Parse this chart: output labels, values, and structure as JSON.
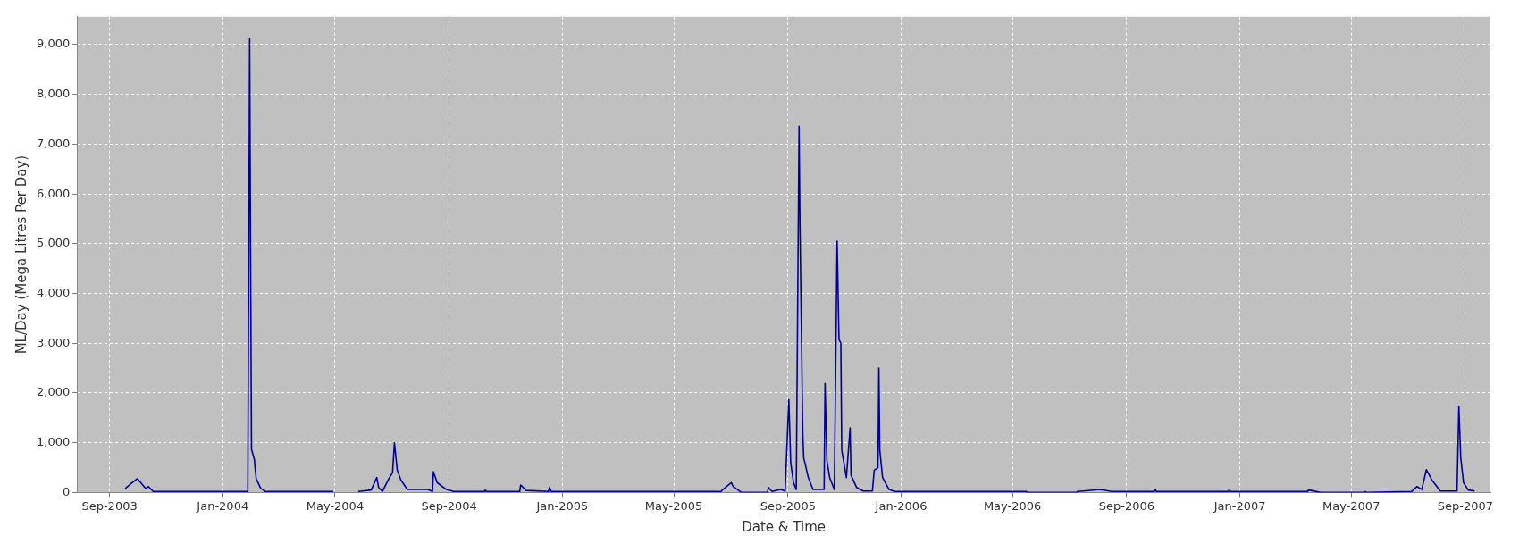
{
  "chart_data": {
    "type": "line",
    "xlabel": "Date & Time",
    "ylabel": "ML/Day (Mega Litres Per Day)",
    "xlim": [
      "2003-07-28",
      "2007-09-28"
    ],
    "ylim": [
      0,
      9560
    ],
    "xticks": [
      {
        "value": "2003-09-01",
        "label": "Sep-2003"
      },
      {
        "value": "2004-01-01",
        "label": "Jan-2004"
      },
      {
        "value": "2004-05-01",
        "label": "May-2004"
      },
      {
        "value": "2004-09-01",
        "label": "Sep-2004"
      },
      {
        "value": "2005-01-01",
        "label": "Jan-2005"
      },
      {
        "value": "2005-05-01",
        "label": "May-2005"
      },
      {
        "value": "2005-09-01",
        "label": "Sep-2005"
      },
      {
        "value": "2006-01-01",
        "label": "Jan-2006"
      },
      {
        "value": "2006-05-01",
        "label": "May-2006"
      },
      {
        "value": "2006-09-01",
        "label": "Sep-2006"
      },
      {
        "value": "2007-01-01",
        "label": "Jan-2007"
      },
      {
        "value": "2007-05-01",
        "label": "May-2007"
      },
      {
        "value": "2007-09-01",
        "label": "Sep-2007"
      }
    ],
    "yticks": [
      0,
      {
        "value": 1000,
        "label": "1,000"
      },
      {
        "value": 2000,
        "label": "2,000"
      },
      {
        "value": 3000,
        "label": "3,000"
      },
      {
        "value": 4000,
        "label": "4,000"
      },
      {
        "value": 5000,
        "label": "5,000"
      },
      {
        "value": 6000,
        "label": "6,000"
      },
      {
        "value": 7000,
        "label": "7,000"
      },
      {
        "value": 8000,
        "label": "8,000"
      },
      {
        "value": 9000,
        "label": "9,000"
      }
    ],
    "grid": true,
    "marker": "none",
    "line_style": "solid",
    "series": [
      {
        "color": "#000099",
        "x": [
          "2003-09-18",
          "2003-09-23",
          "2003-10-01",
          "2003-10-10",
          "2003-10-13",
          "2003-10-18",
          "2004-01-28",
          "2004-01-30",
          "2004-01-31",
          "2004-02-01",
          "2004-02-04",
          "2004-02-06",
          "2004-02-11",
          "2004-02-16",
          "2004-04-29",
          "2004-05-10",
          "2004-05-26",
          "2004-06-09",
          "2004-06-15",
          "2004-06-17",
          "2004-06-21",
          "2004-06-28",
          "2004-07-02",
          "2004-07-04",
          "2004-07-07",
          "2004-07-11",
          "2004-07-18",
          "2004-08-09",
          "2004-08-14",
          "2004-08-15",
          "2004-08-19",
          "2004-08-29",
          "2004-09-06",
          "2004-10-09",
          "2004-10-10",
          "2004-10-11",
          "2004-11-16",
          "2004-11-17",
          "2004-11-23",
          "2004-12-17",
          "2004-12-18",
          "2004-12-20",
          "2005-06-21",
          "2005-06-23",
          "2005-07-02",
          "2005-07-04",
          "2005-07-13",
          "2005-08-10",
          "2005-08-11",
          "2005-08-15",
          "2005-08-24",
          "2005-08-29",
          "2005-09-02",
          "2005-09-04",
          "2005-09-07",
          "2005-09-10",
          "2005-09-13",
          "2005-09-14",
          "2005-09-17",
          "2005-09-18",
          "2005-09-23",
          "2005-09-28",
          "2005-10-10",
          "2005-10-11",
          "2005-10-13",
          "2005-10-16",
          "2005-10-21",
          "2005-10-24",
          "2005-10-26",
          "2005-10-28",
          "2005-10-29",
          "2005-11-03",
          "2005-11-07",
          "2005-11-08",
          "2005-11-14",
          "2005-11-21",
          "2005-12-01",
          "2005-12-03",
          "2005-12-07",
          "2005-12-08",
          "2005-12-09",
          "2005-12-12",
          "2005-12-19",
          "2005-12-25",
          "2006-05-16",
          "2006-05-17",
          "2006-07-09",
          "2006-07-10",
          "2006-07-22",
          "2006-08-03",
          "2006-08-16",
          "2006-10-01",
          "2006-10-02",
          "2006-10-03",
          "2006-12-19",
          "2006-12-20",
          "2006-12-21",
          "2007-03-15",
          "2007-03-16",
          "2007-03-29",
          "2007-05-15",
          "2007-05-16",
          "2007-05-17",
          "2007-07-05",
          "2007-07-11",
          "2007-07-16",
          "2007-07-21",
          "2007-07-27",
          "2007-08-05",
          "2007-08-23",
          "2007-08-25",
          "2007-08-27",
          "2007-08-30",
          "2007-09-04",
          "2007-09-11"
        ],
        "values": [
          80,
          160,
          280,
          80,
          120,
          20,
          20,
          9130,
          4760,
          870,
          670,
          280,
          80,
          20,
          20,
          null,
          20,
          50,
          300,
          100,
          20,
          280,
          400,
          1000,
          450,
          250,
          60,
          60,
          20,
          420,
          200,
          60,
          20,
          20,
          50,
          20,
          20,
          150,
          40,
          20,
          100,
          20,
          20,
          60,
          200,
          120,
          0,
          0,
          100,
          20,
          60,
          30,
          1870,
          600,
          200,
          60,
          7360,
          5340,
          1200,
          700,
          300,
          60,
          60,
          2190,
          640,
          300,
          60,
          5050,
          3080,
          3000,
          850,
          300,
          1300,
          350,
          100,
          30,
          30,
          450,
          500,
          2500,
          850,
          300,
          60,
          20,
          20,
          0,
          0,
          20,
          40,
          60,
          20,
          20,
          60,
          20,
          20,
          40,
          20,
          20,
          50,
          0,
          0,
          20,
          0,
          20,
          120,
          60,
          460,
          250,
          30,
          30,
          1740,
          700,
          200,
          50,
          30
        ]
      }
    ]
  }
}
